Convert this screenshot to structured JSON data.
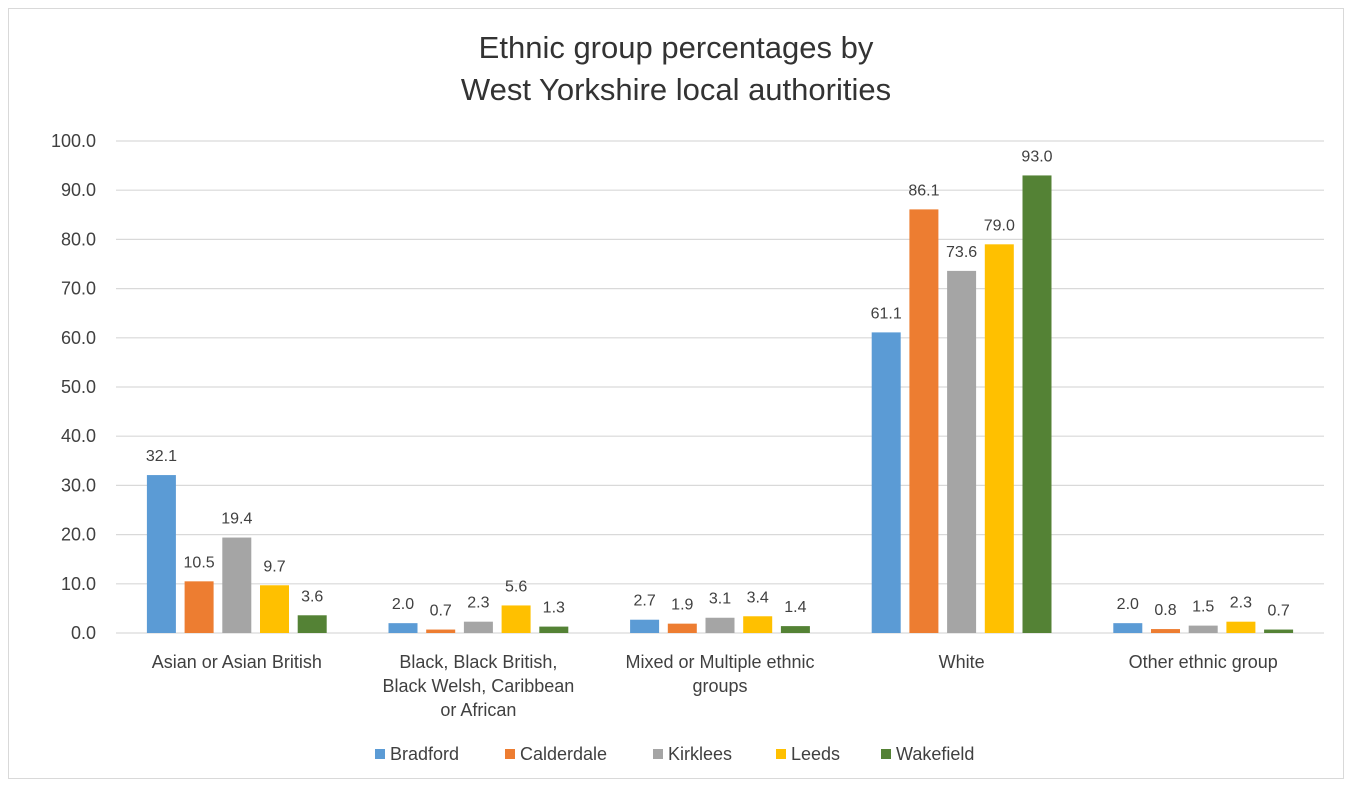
{
  "chart_data": {
    "type": "bar",
    "title_lines": [
      "Ethnic group percentages by",
      "West Yorkshire local authorities"
    ],
    "xlabel": "",
    "ylabel": "",
    "ylim": [
      0,
      100
    ],
    "yticks": [
      "0.0",
      "10.0",
      "20.0",
      "30.0",
      "40.0",
      "50.0",
      "60.0",
      "70.0",
      "80.0",
      "90.0",
      "100.0"
    ],
    "ytick_values": [
      0,
      10,
      20,
      30,
      40,
      50,
      60,
      70,
      80,
      90,
      100
    ],
    "categories": [
      [
        "Asian or Asian British"
      ],
      [
        "Black, Black British,",
        "Black Welsh, Caribbean",
        "or African"
      ],
      [
        "Mixed or Multiple ethnic",
        "groups"
      ],
      [
        "White"
      ],
      [
        "Other ethnic group"
      ]
    ],
    "series": [
      {
        "name": "Bradford",
        "color": "#5b9bd5",
        "values": [
          32.1,
          2.0,
          2.7,
          61.1,
          2.0
        ],
        "labels": [
          "32.1",
          "2.0",
          "2.7",
          "61.1",
          "2.0"
        ]
      },
      {
        "name": "Calderdale",
        "color": "#ed7d31",
        "values": [
          10.5,
          0.7,
          1.9,
          86.1,
          0.8
        ],
        "labels": [
          "10.5",
          "0.7",
          "1.9",
          "86.1",
          "0.8"
        ]
      },
      {
        "name": "Kirklees",
        "color": "#a5a5a5",
        "values": [
          19.4,
          2.3,
          3.1,
          73.6,
          1.5
        ],
        "labels": [
          "19.4",
          "2.3",
          "3.1",
          "73.6",
          "1.5"
        ]
      },
      {
        "name": "Leeds",
        "color": "#ffc000",
        "values": [
          9.7,
          5.6,
          3.4,
          79.0,
          2.3
        ],
        "labels": [
          "9.7",
          "5.6",
          "3.4",
          "79.0",
          "2.3"
        ]
      },
      {
        "name": "Wakefield",
        "color": "#548235",
        "values": [
          3.6,
          1.3,
          1.4,
          93.0,
          0.7
        ],
        "labels": [
          "3.6",
          "1.3",
          "1.4",
          "93.0",
          "0.7"
        ]
      }
    ],
    "grid": true,
    "gridline_color": "#d9d9d9",
    "legend_position": "bottom"
  }
}
